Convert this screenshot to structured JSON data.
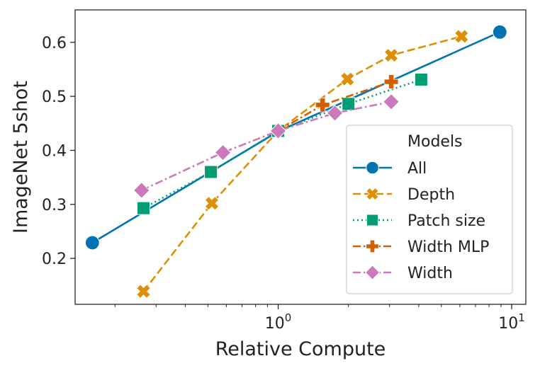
{
  "chart_data": {
    "type": "line",
    "title": "",
    "xlabel": "Relative Compute",
    "ylabel": "ImageNet 5shot",
    "xscale": "log",
    "xlim": [
      0.135,
      11.5
    ],
    "ylim": [
      0.115,
      0.66
    ],
    "x_ticks": [
      {
        "value": 1,
        "base": "10",
        "exp": "0"
      },
      {
        "value": 10,
        "base": "10",
        "exp": "1"
      }
    ],
    "y_ticks": [
      "0.2",
      "0.3",
      "0.4",
      "0.5",
      "0.6"
    ],
    "grid": false,
    "legend": {
      "title": "Models",
      "position": "lower-right"
    },
    "series": [
      {
        "name": "All",
        "color": "#0173b2",
        "dash": "solid",
        "marker": "circle",
        "points": [
          [
            0.16,
            0.229
          ],
          [
            1.0,
            0.435
          ],
          [
            8.9,
            0.619
          ]
        ]
      },
      {
        "name": "Depth",
        "color": "#de8f05",
        "dash": "dashed",
        "marker": "x-filled",
        "points": [
          [
            0.265,
            0.139
          ],
          [
            0.52,
            0.302
          ],
          [
            1.0,
            0.436
          ],
          [
            1.98,
            0.532
          ],
          [
            3.05,
            0.576
          ],
          [
            6.1,
            0.611
          ]
        ]
      },
      {
        "name": "Patch size",
        "color": "#029e73",
        "dash": "dotted",
        "marker": "square",
        "points": [
          [
            0.265,
            0.293
          ],
          [
            0.515,
            0.36
          ],
          [
            1.0,
            0.436
          ],
          [
            2.0,
            0.486
          ],
          [
            4.1,
            0.531
          ]
        ]
      },
      {
        "name": "Width MLP",
        "color": "#d55e00",
        "dash": "dashdot",
        "marker": "plus-filled",
        "points": [
          [
            1.0,
            0.436
          ],
          [
            1.55,
            0.484
          ],
          [
            3.05,
            0.527
          ]
        ]
      },
      {
        "name": "Width",
        "color": "#cc78bc",
        "dash": "dashdot",
        "marker": "diamond",
        "points": [
          [
            0.26,
            0.326
          ],
          [
            0.58,
            0.396
          ],
          [
            1.0,
            0.436
          ],
          [
            1.75,
            0.469
          ],
          [
            3.05,
            0.49
          ]
        ]
      }
    ]
  }
}
